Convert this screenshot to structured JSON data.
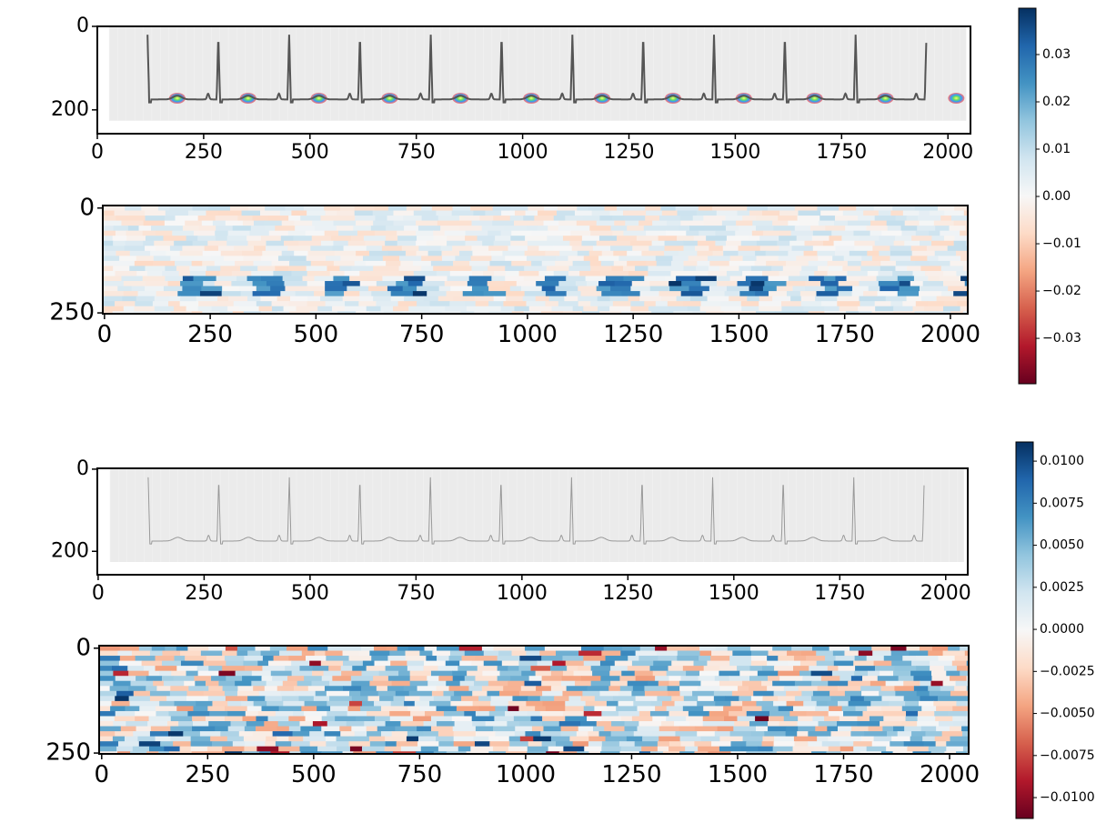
{
  "chart_data": [
    {
      "type": "image",
      "color": "#555555",
      "xlim": [
        0,
        2053
      ],
      "ylim": [
        257,
        0
      ],
      "xticks": [
        0,
        250,
        500,
        750,
        1000,
        1250,
        1500,
        1750,
        2000
      ],
      "yticks": [
        0,
        200
      ]
    },
    {
      "type": "heatmap",
      "xlim": [
        -4,
        2041
      ],
      "ylim": [
        252,
        -6
      ],
      "xticks": [
        0,
        250,
        500,
        750,
        1000,
        1250,
        1500,
        1750,
        2000
      ],
      "yticks": [
        0,
        250
      ]
    },
    {
      "type": "colorbar",
      "colors": [
        "#67001f",
        "#b2182b",
        "#d6604d",
        "#f4a582",
        "#fddbc7",
        "#f7f7f7",
        "#d1e5f0",
        "#92c5de",
        "#4393c3",
        "#2166ac",
        "#053061"
      ],
      "ylim": [
        -0.0396,
        0.0398
      ],
      "yticks": [
        0.03,
        0.02,
        0.01,
        {
          "value": 0,
          "label": "0.00"
        },
        {
          "value": -0.01,
          "label": "−0.01"
        },
        {
          "value": -0.02,
          "label": "−0.02"
        },
        {
          "value": -0.03,
          "label": "−0.03"
        }
      ]
    },
    {
      "type": "image",
      "color": "#999999",
      "xlim": [
        -2,
        2052
      ],
      "ylim": [
        257,
        -2
      ],
      "xticks": [
        0,
        250,
        500,
        750,
        1000,
        1250,
        1500,
        1750,
        2000
      ],
      "yticks": [
        0,
        200
      ]
    },
    {
      "type": "heatmap",
      "xlim": [
        -6,
        2045
      ],
      "ylim": [
        252,
        -6
      ],
      "xticks": [
        0,
        250,
        500,
        750,
        1000,
        1250,
        1500,
        1750,
        2000
      ],
      "yticks": [
        0,
        250
      ]
    },
    {
      "type": "colorbar",
      "colors": [
        "#67001f",
        "#b2182b",
        "#d6604d",
        "#f4a582",
        "#fddbc7",
        "#f7f7f7",
        "#d1e5f0",
        "#92c5de",
        "#4393c3",
        "#2166ac",
        "#053061"
      ],
      "ylim": [
        -0.01124,
        0.01114
      ],
      "yticks": [
        {
          "value": 0.01,
          "label": "0.0100"
        },
        {
          "value": 0.0075,
          "label": "0.0075"
        },
        {
          "value": 0.005,
          "label": "0.0050"
        },
        {
          "value": 0.0025,
          "label": "0.0025"
        },
        {
          "value": 0,
          "label": "0.0000"
        },
        {
          "value": -0.0025,
          "label": "−0.0025"
        },
        {
          "value": -0.005,
          "label": "−0.0050"
        },
        {
          "value": -0.0075,
          "label": "−0.0075"
        },
        {
          "value": -0.01,
          "label": "−0.0100"
        }
      ]
    }
  ]
}
